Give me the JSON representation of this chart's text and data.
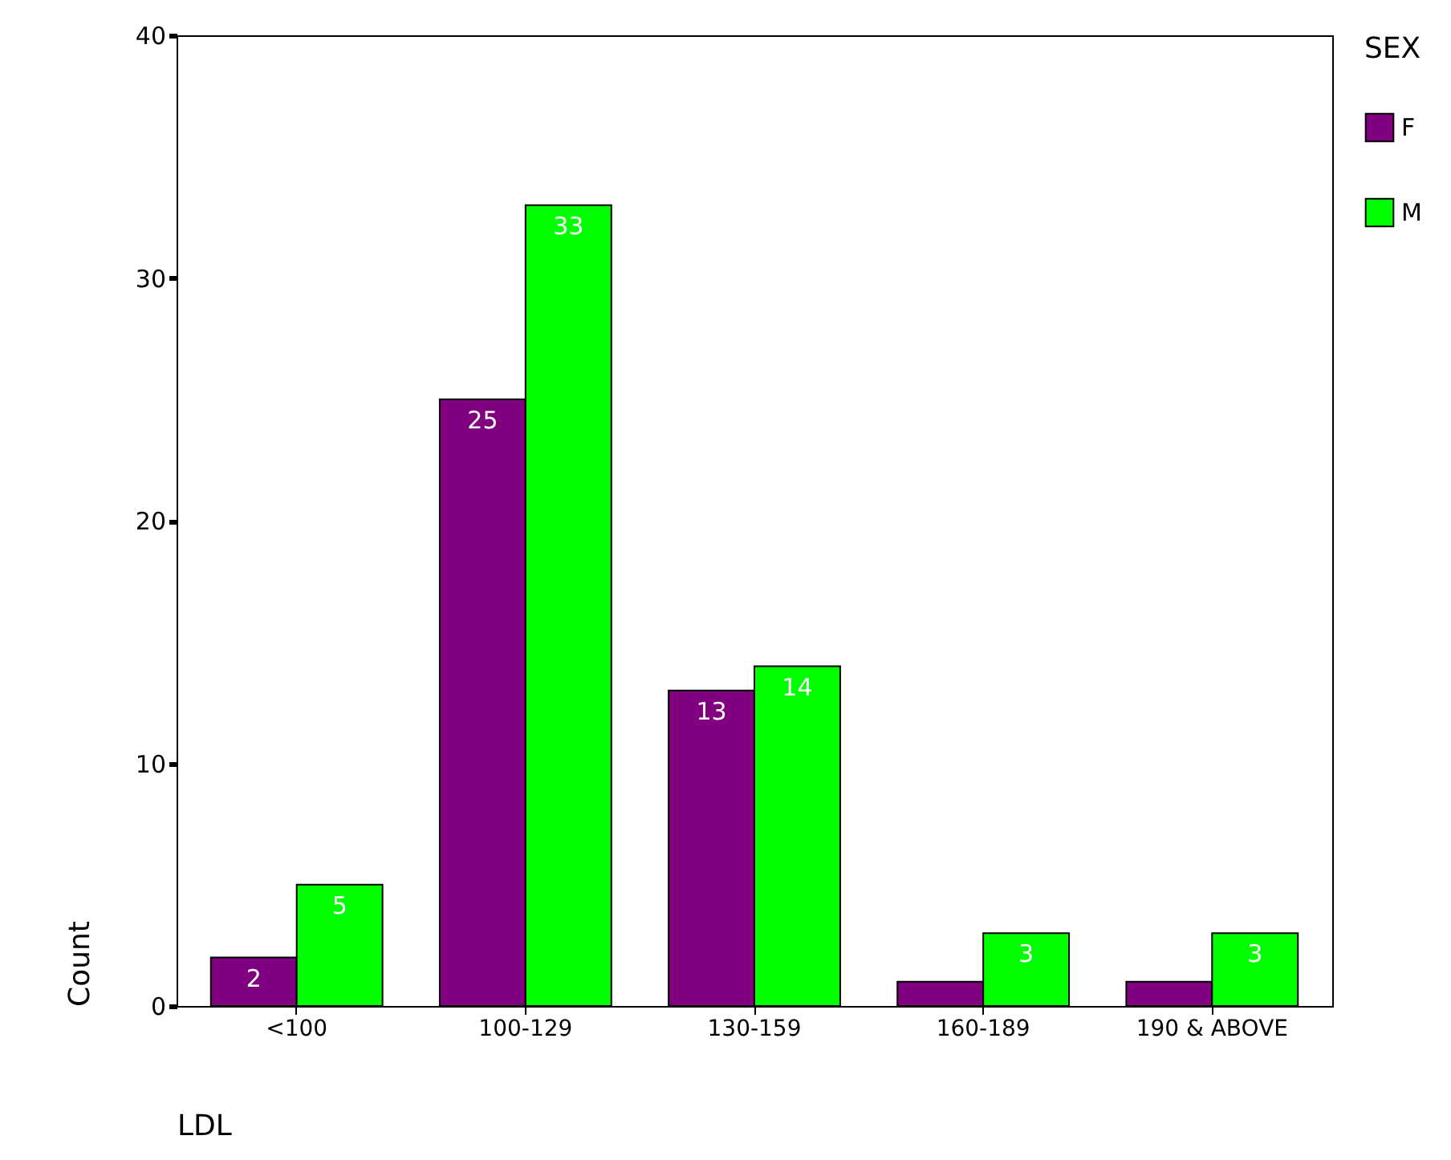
{
  "chart_data": {
    "type": "bar",
    "xlabel": "LDL",
    "ylabel": "Count",
    "legend_title": "SEX",
    "categories": [
      "<100",
      "100-129",
      "130-159",
      "160-189",
      "190 & ABOVE"
    ],
    "series": [
      {
        "name": "F",
        "color": "#800080",
        "values": [
          2,
          25,
          13,
          1,
          1
        ],
        "value_labels": [
          "2",
          "25",
          "13",
          null,
          null
        ]
      },
      {
        "name": "M",
        "color": "#00ff00",
        "values": [
          5,
          33,
          14,
          3,
          3
        ],
        "value_labels": [
          "5",
          "33",
          "14",
          "3",
          "3"
        ]
      }
    ],
    "ylim": [
      0,
      40
    ],
    "yticks": [
      0,
      10,
      20,
      30,
      40
    ],
    "grid": false,
    "legend": "right"
  }
}
